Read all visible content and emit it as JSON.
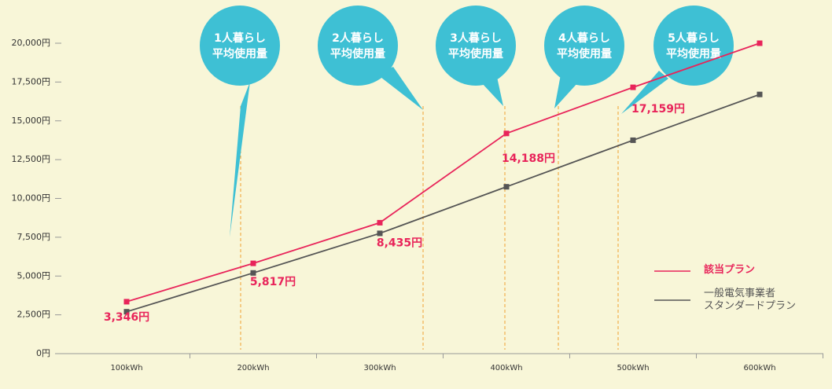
{
  "chart_data": {
    "type": "line",
    "categories": [
      "100kWh",
      "200kWh",
      "300kWh",
      "400kWh",
      "500kWh",
      "600kWh"
    ],
    "series": [
      {
        "name": "該当プラン",
        "color": "#e8245a",
        "values": [
          3346,
          5817,
          8435,
          14188,
          17159,
          20000
        ],
        "value_labels": [
          "3,346円",
          "5,817円",
          "8,435円",
          "14,188円",
          "17,159円",
          null
        ]
      },
      {
        "name": "一般電気事業者\nスタンダードプラン",
        "color": "#555555",
        "values": [
          2700,
          5200,
          7750,
          10750,
          13750,
          16700
        ]
      }
    ],
    "ylim": [
      0,
      20000
    ],
    "yticks": [
      {
        "value": 0,
        "label": "0円"
      },
      {
        "value": 2500,
        "label": "2,500円"
      },
      {
        "value": 5000,
        "label": "5,000円"
      },
      {
        "value": 7500,
        "label": "7,500円"
      },
      {
        "value": 10000,
        "label": "10,000円"
      },
      {
        "value": 12500,
        "label": "12,500円"
      },
      {
        "value": 15000,
        "label": "15,000円"
      },
      {
        "value": 17500,
        "label": "17,500円"
      },
      {
        "value": 20000,
        "label": "20,000円"
      }
    ],
    "annotations": [
      [
        "1人暮らし",
        "平均使用量"
      ],
      [
        "2人暮らし",
        "平均使用量"
      ],
      [
        "3人暮らし",
        "平均使用量"
      ],
      [
        "4人暮らし",
        "平均使用量"
      ],
      [
        "5人暮らし",
        "平均使用量"
      ]
    ],
    "legend": "right"
  }
}
